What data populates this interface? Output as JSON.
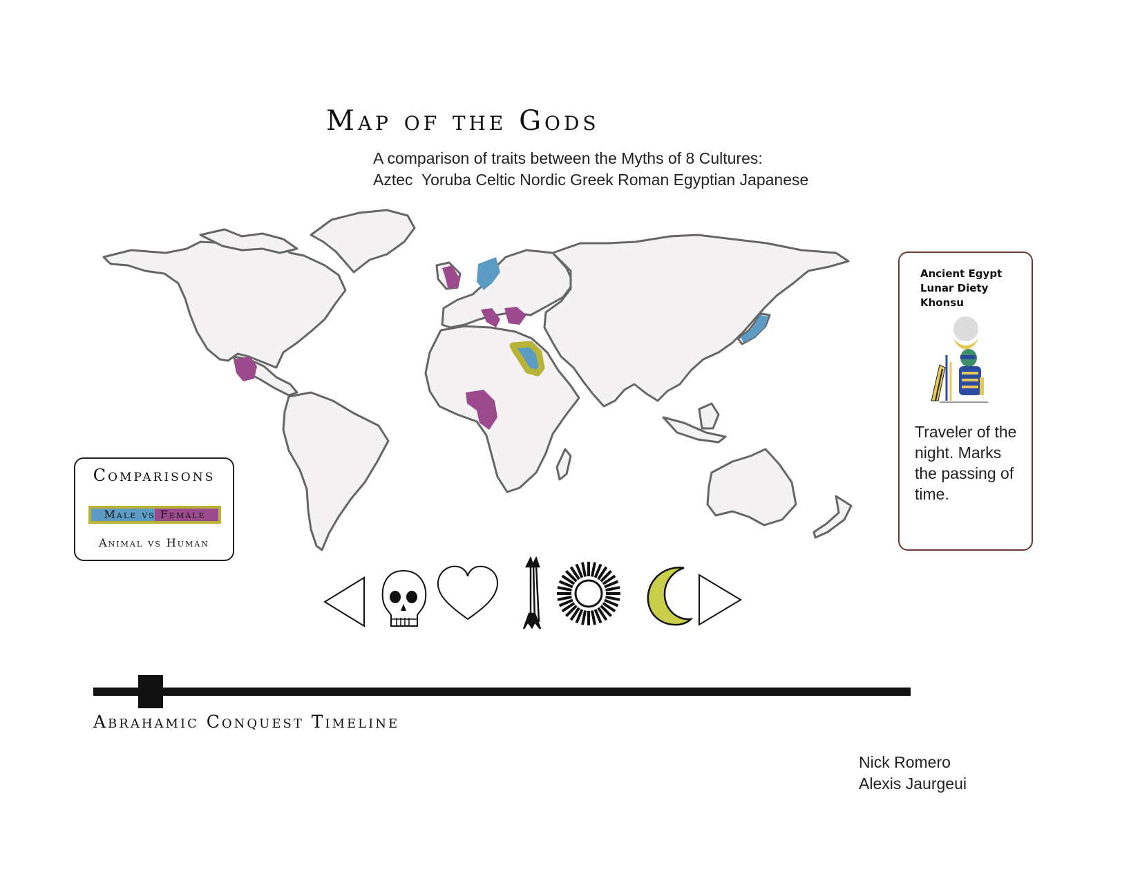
{
  "header": {
    "title": "Map of the Gods",
    "subtitle_line1": "A comparison of traits between the Myths of 8 Cultures:",
    "subtitle_line2": "Aztec  Yoruba Celtic Nordic Greek Roman Egyptian Japanese"
  },
  "map": {
    "regions": [
      {
        "culture": "Aztec",
        "color": "#9c4a8e"
      },
      {
        "culture": "Yoruba",
        "color": "#9c4a8e"
      },
      {
        "culture": "Celtic",
        "color": "#9c4a8e"
      },
      {
        "culture": "Nordic",
        "color": "#5b9bc4"
      },
      {
        "culture": "Greek",
        "color": "#9c4a8e"
      },
      {
        "culture": "Roman",
        "color": "#9c4a8e"
      },
      {
        "culture": "Egyptian",
        "color": "#5b9bc4",
        "highlight": "#b8b43a"
      },
      {
        "culture": "Japanese",
        "color": "#5b9bc4"
      }
    ],
    "land_color": "#f4f2f2",
    "outline_color": "#666666"
  },
  "legend": {
    "title": "Comparisons",
    "active_option": "Male vs Female",
    "other_option": "Animal vs Human",
    "male_color": "#5b9bc4",
    "female_color": "#9c4a8e",
    "active_border": "#b8b43a"
  },
  "info_card": {
    "culture": "Ancient Egypt",
    "role": "Lunar Diety",
    "name": "Khonsu",
    "description": "Traveler of the night. Marks the passing of time."
  },
  "icons": [
    {
      "icon": "previous-arrow-icon"
    },
    {
      "icon": "skull-icon"
    },
    {
      "icon": "heart-icon"
    },
    {
      "icon": "arrows-icon"
    },
    {
      "icon": "sun-icon"
    },
    {
      "icon": "crescent-moon-icon",
      "selected": true,
      "color": "#c9cf4a"
    },
    {
      "icon": "next-arrow-icon"
    }
  ],
  "timeline": {
    "label": "Abrahamic Conquest Timeline",
    "position": 0.07
  },
  "credits": {
    "author1": "Nick Romero",
    "author2": "Alexis Jaurgeui"
  }
}
